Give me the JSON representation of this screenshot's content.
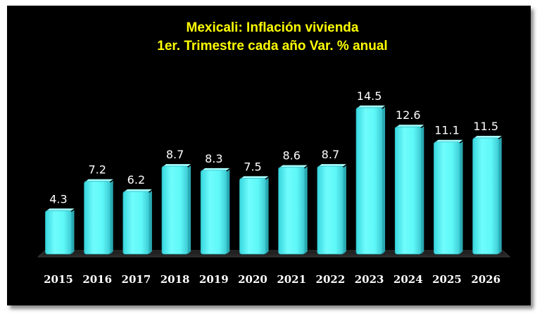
{
  "chart_data": {
    "type": "bar",
    "title": "Mexicali: Inflación vivienda",
    "subtitle": "1er. Trimestre cada año Var. % anual",
    "categories": [
      "2015",
      "2016",
      "2017",
      "2018",
      "2019",
      "2020",
      "2021",
      "2022",
      "2023",
      "2024",
      "2025",
      "2026"
    ],
    "values": [
      4.3,
      7.2,
      6.2,
      8.7,
      8.3,
      7.5,
      8.6,
      8.7,
      14.5,
      12.6,
      11.1,
      11.5
    ],
    "value_labels": [
      "4.3",
      "7.2",
      "6.2",
      "8.7",
      "8.3",
      "7.5",
      "8.6",
      "8.7",
      "14.5",
      "12.6",
      "11.1",
      "11.5"
    ],
    "xlabel": "",
    "ylabel": "",
    "ylim": [
      0,
      16
    ],
    "grid": false,
    "legend": "none",
    "colors": {
      "background": "#000000",
      "bar": "#5ff8f8",
      "bar_edge": "#2fb8c0",
      "title": "#ffff00",
      "labels": "#ffffff"
    }
  }
}
